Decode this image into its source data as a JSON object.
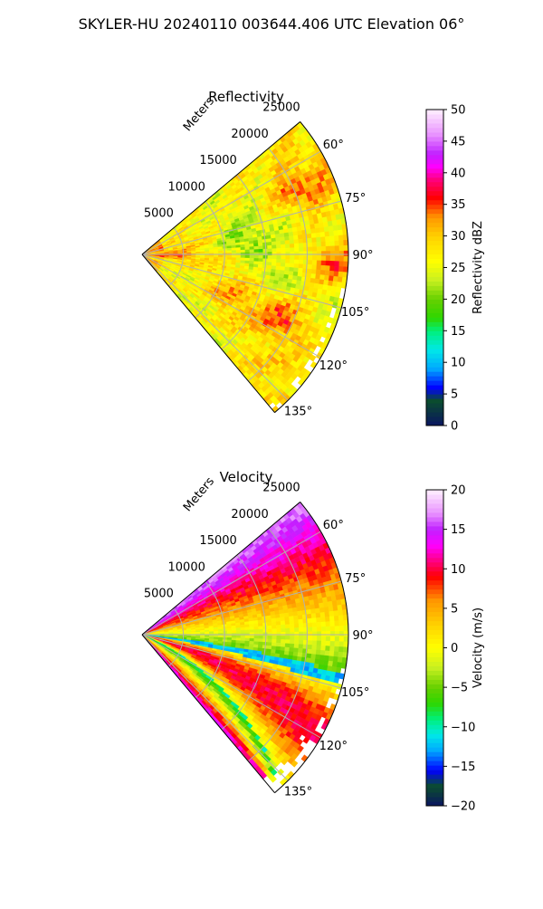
{
  "figure": {
    "title": "SKYLER-HU  20240110  003644.406 UTC Elevation 06°"
  },
  "chart_data": [
    {
      "type": "heatmap",
      "title": "Reflectivity",
      "radial_label": "Meters",
      "r_ticks": [
        5000,
        10000,
        15000,
        20000,
        25000
      ],
      "r_tick_labels": [
        "5000",
        "10000",
        "15000",
        "20000",
        "25000"
      ],
      "rlim": [
        0,
        25000
      ],
      "theta_range_deg": [
        50,
        140
      ],
      "theta_ticks_deg": [
        60,
        75,
        90,
        105,
        120,
        135
      ],
      "theta_tick_labels": [
        "60°",
        "75°",
        "90°",
        "105°",
        "120°",
        "135°"
      ],
      "grid": true,
      "colorbar": {
        "label": "Reflectivity dBZ",
        "vmin": 0,
        "vmax": 50,
        "ticks": [
          0,
          5,
          10,
          15,
          20,
          25,
          30,
          35,
          40,
          45,
          50
        ],
        "tick_labels": [
          "0",
          "5",
          "10",
          "15",
          "20",
          "25",
          "30",
          "35",
          "40",
          "45",
          "50"
        ],
        "stops": [
          {
            "v": 0,
            "color": "#0a1560"
          },
          {
            "v": 4,
            "color": "#0b4d2e"
          },
          {
            "v": 6,
            "color": "#0000ff"
          },
          {
            "v": 9,
            "color": "#00a8ff"
          },
          {
            "v": 12,
            "color": "#00e8e8"
          },
          {
            "v": 15,
            "color": "#00f07a"
          },
          {
            "v": 17,
            "color": "#2ed600"
          },
          {
            "v": 20,
            "color": "#66d000"
          },
          {
            "v": 23,
            "color": "#c8f020"
          },
          {
            "v": 26,
            "color": "#ffff00"
          },
          {
            "v": 30,
            "color": "#ffd000"
          },
          {
            "v": 33,
            "color": "#ff9600"
          },
          {
            "v": 36,
            "color": "#ff0000"
          },
          {
            "v": 39,
            "color": "#ff0080"
          },
          {
            "v": 41,
            "color": "#ff00ff"
          },
          {
            "v": 43,
            "color": "#c020ff"
          },
          {
            "v": 46,
            "color": "#e890ff"
          },
          {
            "v": 50,
            "color": "#fff0ff"
          }
        ]
      }
    },
    {
      "type": "heatmap",
      "title": "Velocity",
      "radial_label": "Meters",
      "r_ticks": [
        5000,
        10000,
        15000,
        20000,
        25000
      ],
      "r_tick_labels": [
        "5000",
        "10000",
        "15000",
        "20000",
        "25000"
      ],
      "rlim": [
        0,
        25000
      ],
      "theta_range_deg": [
        50,
        140
      ],
      "theta_ticks_deg": [
        60,
        75,
        90,
        105,
        120,
        135
      ],
      "theta_tick_labels": [
        "60°",
        "75°",
        "90°",
        "105°",
        "120°",
        "135°"
      ],
      "grid": true,
      "colorbar": {
        "label": "Velocity (m/s)",
        "vmin": -20,
        "vmax": 20,
        "ticks": [
          -20,
          -15,
          -10,
          -5,
          0,
          5,
          10,
          15,
          20
        ],
        "tick_labels": [
          "−20",
          "−15",
          "−10",
          "−5",
          "0",
          "5",
          "10",
          "15",
          "20"
        ],
        "stops": [
          {
            "v": -20,
            "color": "#0a1560"
          },
          {
            "v": -17.5,
            "color": "#0b4d2e"
          },
          {
            "v": -15.5,
            "color": "#0000ff"
          },
          {
            "v": -13,
            "color": "#00a8ff"
          },
          {
            "v": -11,
            "color": "#00e8e8"
          },
          {
            "v": -9,
            "color": "#00f07a"
          },
          {
            "v": -7,
            "color": "#2ed600"
          },
          {
            "v": -5,
            "color": "#66d000"
          },
          {
            "v": -2.5,
            "color": "#c8f020"
          },
          {
            "v": 0,
            "color": "#ffff00"
          },
          {
            "v": 3,
            "color": "#ffd000"
          },
          {
            "v": 6,
            "color": "#ff9600"
          },
          {
            "v": 9,
            "color": "#ff0000"
          },
          {
            "v": 11,
            "color": "#ff0080"
          },
          {
            "v": 13,
            "color": "#ff00ff"
          },
          {
            "v": 15,
            "color": "#c020ff"
          },
          {
            "v": 17,
            "color": "#e890ff"
          },
          {
            "v": 20,
            "color": "#fff0ff"
          }
        ]
      }
    }
  ]
}
